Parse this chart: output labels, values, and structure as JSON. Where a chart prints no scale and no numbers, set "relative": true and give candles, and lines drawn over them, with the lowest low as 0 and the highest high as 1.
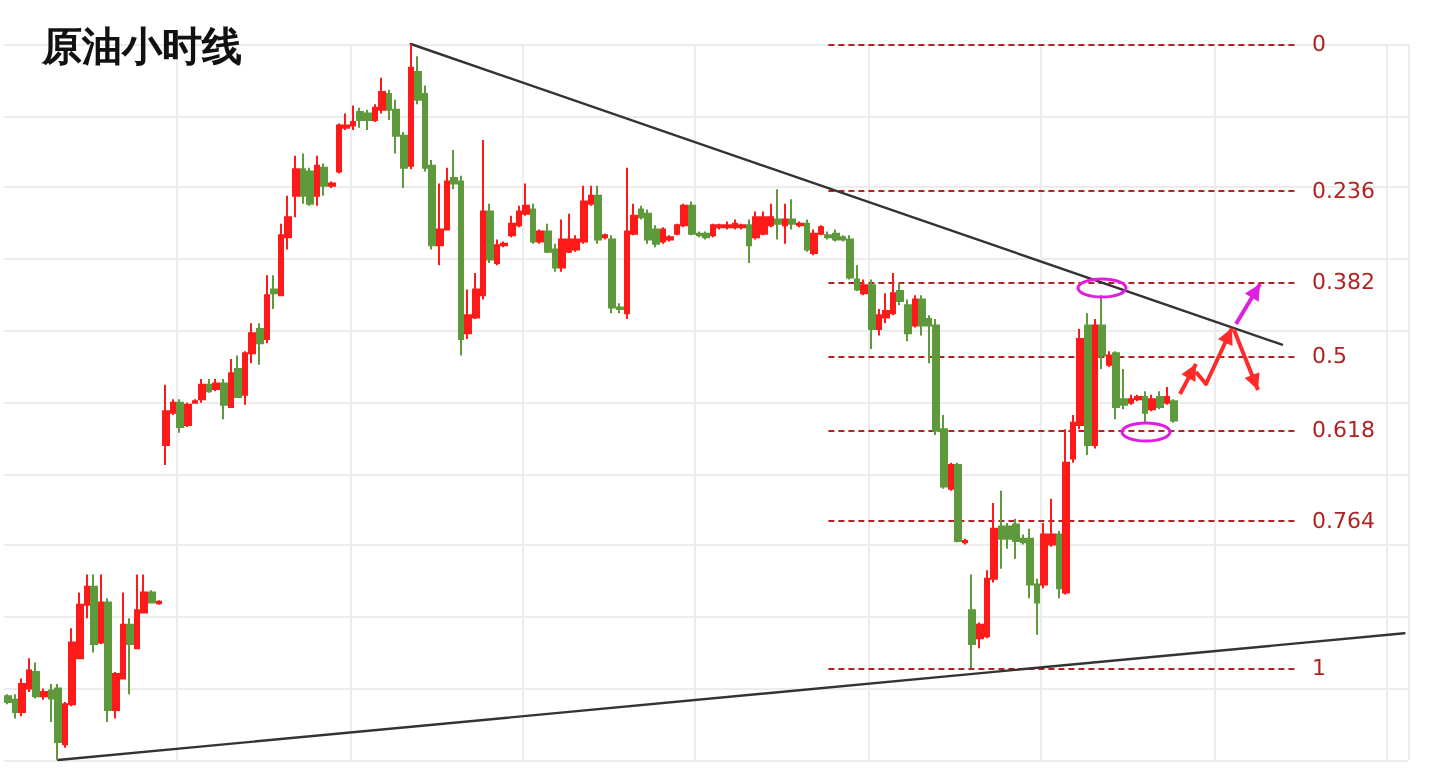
{
  "chart_data": {
    "type": "candlestick",
    "title": "原油小时线",
    "relative": true,
    "grid": true,
    "categories": [
      null,
      null,
      null,
      null,
      null,
      null,
      null,
      null,
      null,
      null,
      null,
      null,
      null,
      null,
      null,
      null,
      null,
      null,
      null,
      null,
      null,
      null,
      null,
      null,
      null,
      null,
      null,
      null,
      null,
      null,
      null,
      null,
      null,
      null,
      null,
      null,
      null,
      null,
      null,
      null,
      null,
      null,
      null,
      null,
      null,
      null,
      null,
      null,
      null,
      null,
      null,
      null,
      null,
      null,
      null,
      null,
      null,
      null,
      null,
      null,
      null,
      null,
      null,
      null,
      null,
      null,
      null,
      null,
      null,
      null,
      null,
      null,
      null,
      null,
      null,
      null,
      null,
      null,
      null,
      null,
      null,
      null,
      null,
      null,
      null,
      null,
      null,
      null,
      null,
      null,
      null,
      null,
      null,
      null,
      null,
      null,
      null,
      null,
      null,
      null,
      null,
      null,
      null,
      null,
      null,
      null,
      null,
      null,
      null,
      null,
      null,
      null,
      null,
      null,
      null,
      null,
      null,
      null,
      null,
      null,
      null,
      null,
      null,
      null,
      null,
      null,
      null,
      null,
      null,
      null,
      null,
      null,
      null,
      null,
      null,
      null,
      null,
      null,
      null,
      null,
      null,
      null,
      null,
      null,
      null,
      null,
      null,
      null,
      null,
      null,
      null,
      null,
      null,
      null,
      null,
      null,
      null,
      null,
      null,
      null,
      null,
      null,
      null,
      null,
      null,
      null,
      null,
      null,
      null,
      null,
      null,
      null,
      null,
      null,
      null,
      null,
      null,
      null,
      null,
      null,
      null,
      null,
      null,
      null,
      null,
      null,
      null,
      null,
      null,
      null,
      null,
      null,
      null,
      null,
      null
    ],
    "ohlc": [
      [
        0.089,
        0.092,
        0.078,
        0.081
      ],
      [
        0.084,
        0.092,
        0.058,
        0.067
      ],
      [
        0.067,
        0.114,
        0.061,
        0.106
      ],
      [
        0.1,
        0.142,
        0.095,
        0.125
      ],
      [
        0.123,
        0.136,
        0.086,
        0.089
      ],
      [
        0.089,
        0.1,
        0.084,
        0.095
      ],
      [
        0.097,
        0.106,
        0.053,
        0.086
      ],
      [
        0.1,
        0.106,
        0,
        0.025
      ],
      [
        0.022,
        0.081,
        0.017,
        0.078
      ],
      [
        0.078,
        0.184,
        0.075,
        0.164
      ],
      [
        0.142,
        0.234,
        0.142,
        0.217
      ],
      [
        0.217,
        0.259,
        0.198,
        0.242
      ],
      [
        0.242,
        0.259,
        0.15,
        0.162
      ],
      [
        0.164,
        0.259,
        0.162,
        0.22
      ],
      [
        0.22,
        0.226,
        0.053,
        0.07
      ],
      [
        0.07,
        0.123,
        0.058,
        0.12
      ],
      [
        0.114,
        0.234,
        0.114,
        0.189
      ],
      [
        0.189,
        0.198,
        0.092,
        0.162
      ],
      [
        0.156,
        0.259,
        0.156,
        0.209
      ],
      [
        0.206,
        0.259,
        0.206,
        0.234
      ],
      [
        0.234,
        0.237,
        0.22,
        0.22
      ],
      [
        0.219,
        0.223,
        0.217,
        0.221
      ],
      [
        0.44,
        0.524,
        0.412,
        0.487
      ],
      [
        0.485,
        0.504,
        0.482,
        0.499
      ],
      [
        0.499,
        0.504,
        0.457,
        0.465
      ],
      [
        0.468,
        0.499,
        0.465,
        0.496
      ],
      [
        0.499,
        0.504,
        0.499,
        0.501
      ],
      [
        0.504,
        0.532,
        0.499,
        0.524
      ],
      [
        0.524,
        0.532,
        0.513,
        0.515
      ],
      [
        0.518,
        0.532,
        0.515,
        0.526
      ],
      [
        0.526,
        0.532,
        0.476,
        0.496
      ],
      [
        0.493,
        0.56,
        0.493,
        0.54
      ],
      [
        0.546,
        0.565,
        0.507,
        0.507
      ],
      [
        0.51,
        0.571,
        0.496,
        0.568
      ],
      [
        0.568,
        0.61,
        0.554,
        0.596
      ],
      [
        0.602,
        0.61,
        0.552,
        0.582
      ],
      [
        0.588,
        0.677,
        0.582,
        0.649
      ],
      [
        0.657,
        0.677,
        0.63,
        0.652
      ],
      [
        0.649,
        0.749,
        0.649,
        0.733
      ],
      [
        0.73,
        0.788,
        0.713,
        0.758
      ],
      [
        0.788,
        0.844,
        0.758,
        0.825
      ],
      [
        0.825,
        0.847,
        0.777,
        0.788
      ],
      [
        0.822,
        0.827,
        0.774,
        0.777
      ],
      [
        0.788,
        0.844,
        0.774,
        0.83
      ],
      [
        0.827,
        0.833,
        0.788,
        0.802
      ],
      [
        0.802,
        0.808,
        0.799,
        0.805
      ],
      [
        0.822,
        0.889,
        0.819,
        0.886
      ],
      [
        0.883,
        0.903,
        0.88,
        0.886
      ],
      [
        0.886,
        0.914,
        0.88,
        0.891
      ],
      [
        0.905,
        0.911,
        0.883,
        0.894
      ],
      [
        0.903,
        0.908,
        0.88,
        0.894
      ],
      [
        0.894,
        0.916,
        0.891,
        0.911
      ],
      [
        0.908,
        0.953,
        0.903,
        0.933
      ],
      [
        0.93,
        0.936,
        0.894,
        0.908
      ],
      [
        0.908,
        0.922,
        0.847,
        0.872
      ],
      [
        0.872,
        0.877,
        0.799,
        0.827
      ],
      [
        0.83,
        1,
        0.825,
        0.967
      ],
      [
        0.961,
        0.983,
        0.916,
        0.922
      ],
      [
        0.93,
        0.942,
        0.822,
        0.827
      ],
      [
        0.83,
        0.838,
        0.713,
        0.719
      ],
      [
        0.719,
        0.805,
        0.691,
        0.741
      ],
      [
        0.741,
        0.827,
        0.741,
        0.808
      ],
      [
        0.813,
        0.852,
        0.797,
        0.805
      ],
      [
        0.808,
        0.816,
        0.565,
        0.588
      ],
      [
        0.596,
        0.657,
        0.588,
        0.621
      ],
      [
        0.618,
        0.68,
        0.616,
        0.657
      ],
      [
        0.649,
        0.866,
        0.643,
        0.766
      ],
      [
        0.766,
        0.777,
        0.694,
        0.699
      ],
      [
        0.694,
        0.727,
        0.691,
        0.719
      ],
      [
        0.719,
        0.724,
        0.716,
        0.721
      ],
      [
        0.733,
        0.76,
        0.73,
        0.749
      ],
      [
        0.747,
        0.774,
        0.744,
        0.766
      ],
      [
        0.763,
        0.805,
        0.76,
        0.774
      ],
      [
        0.769,
        0.777,
        0.721,
        0.724
      ],
      [
        0.724,
        0.741,
        0.721,
        0.738
      ],
      [
        0.738,
        0.749,
        0.708,
        0.71
      ],
      [
        0.713,
        0.721,
        0.682,
        0.688
      ],
      [
        0.688,
        0.755,
        0.682,
        0.727
      ],
      [
        0.71,
        0.763,
        0.708,
        0.727
      ],
      [
        0.713,
        0.733,
        0.71,
        0.727
      ],
      [
        0.724,
        0.802,
        0.721,
        0.78
      ],
      [
        0.777,
        0.802,
        0.774,
        0.788
      ],
      [
        0.788,
        0.802,
        0.721,
        0.727
      ],
      [
        0.73,
        0.735,
        0.727,
        0.733
      ],
      [
        0.727,
        0.733,
        0.624,
        0.632
      ],
      [
        0.632,
        0.638,
        0.624,
        0.63
      ],
      [
        0.624,
        0.827,
        0.616,
        0.738
      ],
      [
        0.735,
        0.777,
        0.733,
        0.76
      ],
      [
        0.769,
        0.774,
        0.755,
        0.758
      ],
      [
        0.763,
        0.769,
        0.721,
        0.727
      ],
      [
        0.741,
        0.747,
        0.716,
        0.721
      ],
      [
        0.724,
        0.744,
        0.721,
        0.741
      ],
      [
        0.727,
        0.733,
        0.724,
        0.73
      ],
      [
        0.735,
        0.749,
        0.733,
        0.747
      ],
      [
        0.747,
        0.777,
        0.744,
        0.774
      ],
      [
        0.774,
        0.78,
        0.733,
        0.735
      ],
      [
        0.735,
        0.738,
        0.73,
        0.733
      ],
      [
        0.735,
        0.738,
        0.727,
        0.73
      ],
      [
        0.733,
        0.749,
        0.73,
        0.747
      ],
      [
        0.744,
        0.749,
        0.741,
        0.747
      ],
      [
        0.744,
        0.752,
        0.741,
        0.747
      ],
      [
        0.744,
        0.755,
        0.741,
        0.749
      ],
      [
        0.744,
        0.749,
        0.741,
        0.747
      ],
      [
        0.747,
        0.755,
        0.694,
        0.719
      ],
      [
        0.73,
        0.766,
        0.727,
        0.758
      ],
      [
        0.735,
        0.766,
        0.733,
        0.758
      ],
      [
        0.747,
        0.777,
        0.744,
        0.758
      ],
      [
        0.755,
        0.797,
        0.727,
        0.749
      ],
      [
        0.747,
        0.777,
        0.721,
        0.755
      ],
      [
        0.755,
        0.783,
        0.741,
        0.749
      ],
      [
        0.747,
        0.752,
        0.744,
        0.749
      ],
      [
        0.749,
        0.755,
        0.71,
        0.713
      ],
      [
        0.708,
        0.741,
        0.705,
        0.735
      ],
      [
        0.735,
        0.747,
        0.733,
        0.744
      ],
      [
        0.733,
        0.738,
        0.727,
        0.73
      ],
      [
        0.735,
        0.741,
        0.724,
        0.727
      ],
      [
        0.73,
        0.733,
        0.724,
        0.727
      ],
      [
        0.727,
        0.733,
        0.671,
        0.674
      ],
      [
        0.671,
        0.691,
        0.655,
        0.657
      ],
      [
        0.652,
        0.671,
        0.649,
        0.663
      ],
      [
        0.663,
        0.671,
        0.574,
        0.602
      ],
      [
        0.602,
        0.63,
        0.593,
        0.621
      ],
      [
        0.618,
        0.652,
        0.61,
        0.627
      ],
      [
        0.624,
        0.68,
        0.621,
        0.652
      ],
      [
        0.655,
        0.666,
        0.635,
        0.641
      ],
      [
        0.635,
        0.643,
        0.585,
        0.596
      ],
      [
        0.607,
        0.649,
        0.604,
        0.643
      ],
      [
        0.643,
        0.649,
        0.593,
        0.607
      ],
      [
        0.616,
        0.621,
        0.554,
        0.607
      ],
      [
        0.607,
        0.616,
        0.454,
        0.46
      ],
      [
        0.462,
        0.482,
        0.379,
        0.382
      ],
      [
        0.379,
        0.415,
        0.376,
        0.412
      ],
      [
        0.412,
        0.415,
        0.304,
        0.306
      ],
      [
        0.304,
        0.309,
        0.301,
        0.306
      ],
      [
        0.209,
        0.259,
        0.128,
        0.162
      ],
      [
        0.17,
        0.192,
        0.156,
        0.189
      ],
      [
        0.173,
        0.265,
        0.17,
        0.253
      ],
      [
        0.253,
        0.359,
        0.248,
        0.323
      ],
      [
        0.326,
        0.376,
        0.267,
        0.309
      ],
      [
        0.326,
        0.331,
        0.295,
        0.309
      ],
      [
        0.329,
        0.337,
        0.281,
        0.306
      ],
      [
        0.309,
        0.315,
        0.301,
        0.304
      ],
      [
        0.309,
        0.323,
        0.226,
        0.245
      ],
      [
        0.245,
        0.253,
        0.175,
        0.22
      ],
      [
        0.245,
        0.331,
        0.24,
        0.315
      ],
      [
        0.301,
        0.365,
        0.298,
        0.315
      ],
      [
        0.315,
        0.32,
        0.226,
        0.24
      ],
      [
        0.234,
        0.462,
        0.231,
        0.415
      ],
      [
        0.421,
        0.482,
        0.415,
        0.471
      ],
      [
        0.468,
        0.602,
        0.462,
        0.588
      ],
      [
        0.607,
        0.624,
        0.426,
        0.44
      ],
      [
        0.44,
        0.616,
        0.435,
        0.607
      ],
      [
        0.607,
        0.649,
        0.546,
        0.565
      ],
      [
        0.552,
        0.571,
        0.549,
        0.565
      ],
      [
        0.568,
        0.571,
        0.476,
        0.493
      ],
      [
        0.504,
        0.546,
        0.49,
        0.496
      ],
      [
        0.499,
        0.51,
        0.496,
        0.504
      ],
      [
        0.504,
        0.51,
        0.501,
        0.507
      ],
      [
        0.507,
        0.515,
        0.471,
        0.485
      ],
      [
        0.49,
        0.51,
        0.487,
        0.504
      ],
      [
        0.507,
        0.515,
        0.49,
        0.493
      ],
      [
        0.499,
        0.521,
        0.496,
        0.507
      ],
      [
        0.501,
        0.504,
        0.471,
        0.474
      ],
      null,
      null,
      null,
      null,
      null,
      null,
      null,
      null,
      null,
      null,
      null,
      null,
      null,
      null,
      null,
      null,
      null,
      null,
      null,
      null,
      null,
      null,
      null,
      null,
      null,
      null,
      null,
      null,
      null,
      null,
      null,
      null
    ],
    "series": [
      {
        "type": "line",
        "color": "#333333",
        "values": [
          null,
          null,
          null,
          null,
          null,
          null,
          null,
          null,
          null,
          null,
          null,
          null,
          null,
          null,
          null,
          null,
          null,
          null,
          null,
          null,
          null,
          null,
          null,
          null,
          null,
          null,
          null,
          null,
          null,
          null,
          null,
          null,
          null,
          null,
          null,
          null,
          null,
          null,
          null,
          null,
          null,
          null,
          null,
          null,
          null,
          null,
          null,
          null,
          null,
          null,
          null,
          null,
          null,
          null,
          null,
          null,
          1,
          null,
          null,
          null,
          null,
          null,
          null,
          null,
          null,
          null,
          null,
          null,
          null,
          null,
          null,
          null,
          null,
          null,
          null,
          null,
          null,
          null,
          null,
          null,
          null,
          null,
          null,
          null,
          null,
          null,
          null,
          null,
          null,
          null,
          null,
          null,
          null,
          null,
          null,
          null,
          null,
          null,
          null,
          null,
          null,
          null,
          null,
          null,
          null,
          null,
          null,
          null,
          null,
          null,
          null,
          null,
          null,
          null,
          null,
          null,
          null,
          null,
          null,
          null,
          null,
          null,
          null,
          null,
          null,
          null,
          null,
          null,
          null,
          null,
          null,
          null,
          null,
          null,
          null,
          null,
          null,
          null,
          null,
          null,
          null,
          null,
          null,
          null,
          null,
          null,
          null,
          null,
          null,
          null,
          null,
          null,
          null,
          null,
          null,
          null,
          null,
          null,
          null,
          null,
          null,
          null,
          null,
          null,
          null,
          null,
          null,
          null,
          null,
          null,
          null,
          null,
          null,
          null,
          null,
          null,
          null,
          0.58,
          null,
          null,
          null,
          null,
          null,
          null,
          null,
          null,
          null,
          null,
          null,
          null,
          null,
          null,
          null,
          null,
          null
        ]
      },
      {
        "type": "line",
        "color": "#333333",
        "values": [
          null,
          null,
          null,
          null,
          null,
          null,
          null,
          0,
          null,
          null,
          null,
          null,
          null,
          null,
          null,
          null,
          null,
          null,
          null,
          null,
          null,
          null,
          null,
          null,
          null,
          null,
          null,
          null,
          null,
          null,
          null,
          null,
          null,
          null,
          null,
          null,
          null,
          null,
          null,
          null,
          null,
          null,
          null,
          null,
          null,
          null,
          null,
          null,
          null,
          null,
          null,
          null,
          null,
          null,
          null,
          null,
          null,
          null,
          null,
          null,
          null,
          null,
          null,
          null,
          null,
          null,
          null,
          null,
          null,
          null,
          null,
          null,
          null,
          null,
          null,
          null,
          null,
          null,
          null,
          null,
          null,
          null,
          null,
          null,
          null,
          null,
          null,
          null,
          null,
          null,
          null,
          null,
          null,
          null,
          null,
          null,
          null,
          null,
          null,
          null,
          null,
          null,
          null,
          null,
          null,
          null,
          null,
          null,
          null,
          null,
          null,
          null,
          null,
          null,
          null,
          null,
          null,
          null,
          null,
          null,
          null,
          null,
          null,
          null,
          null,
          null,
          null,
          null,
          null,
          null,
          null,
          null,
          null,
          null,
          null,
          null,
          null,
          null,
          null,
          null,
          null,
          null,
          null,
          null,
          null,
          null,
          null,
          null,
          null,
          null,
          null,
          null,
          null,
          null,
          null,
          null,
          null,
          null,
          null,
          null,
          null,
          null,
          null,
          null,
          null,
          null,
          null,
          null,
          null,
          null,
          null,
          null,
          null,
          null,
          null,
          null,
          null,
          null,
          null,
          null,
          null,
          null,
          null,
          null,
          null,
          null,
          null,
          null,
          null,
          null,
          null,
          null,
          null,
          null,
          0.177
        ]
      }
    ],
    "y2lim": [
      1.147,
      0
    ],
    "y2ticks": [
      0,
      0.236,
      0.382,
      0.5,
      0.618,
      0.764,
      1
    ],
    "ref_lines": [
      {
        "axis": "y2",
        "value": 0,
        "color": "#b22222",
        "line_style": "dashed"
      },
      {
        "axis": "y2",
        "value": 0.236,
        "color": "#b22222",
        "line_style": "dashed"
      },
      {
        "axis": "y2",
        "value": 0.382,
        "color": "#b22222",
        "line_style": "dashed"
      },
      {
        "axis": "y2",
        "value": 0.5,
        "color": "#b22222",
        "line_style": "dashed"
      },
      {
        "axis": "y2",
        "value": 0.618,
        "color": "#b22222",
        "line_style": "dashed"
      },
      {
        "axis": "y2",
        "value": 0.764,
        "color": "#b22222",
        "line_style": "dashed"
      },
      {
        "axis": "y2",
        "value": 1,
        "color": "#b22222",
        "line_style": "dashed"
      }
    ]
  }
}
